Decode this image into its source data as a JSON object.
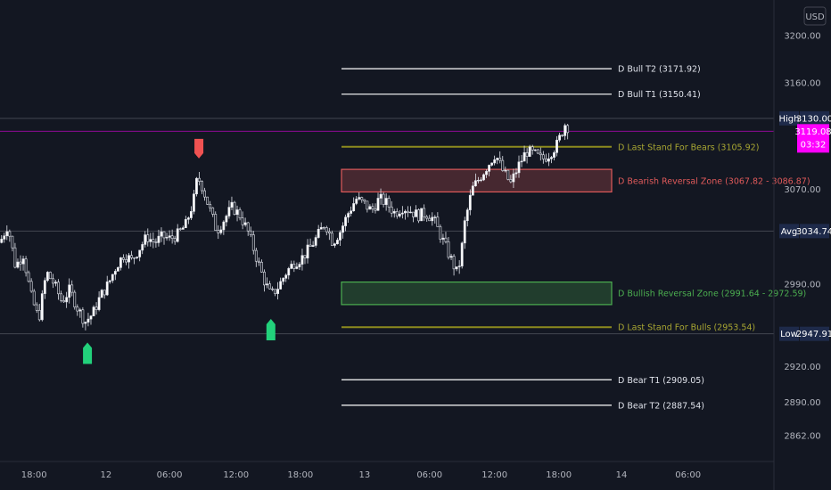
{
  "currency": "USD",
  "chart_data": {
    "type": "candlestick",
    "y_range": [
      2840,
      3230
    ],
    "y_ticks": [
      {
        "label": "3200.00",
        "value": 3200
      },
      {
        "label": "3160.00",
        "value": 3160
      },
      {
        "label": "3070.00",
        "value": 3070
      },
      {
        "label": "2990.00",
        "value": 2990
      },
      {
        "label": "2920.00",
        "value": 2920
      },
      {
        "label": "2890.00",
        "value": 2890
      },
      {
        "label": "2862.00",
        "value": 2862
      }
    ],
    "x_ticks": [
      {
        "label": "18:00",
        "pos": 0.044
      },
      {
        "label": "12",
        "pos": 0.137
      },
      {
        "label": "06:00",
        "pos": 0.219
      },
      {
        "label": "12:00",
        "pos": 0.305
      },
      {
        "label": "18:00",
        "pos": 0.388
      },
      {
        "label": "13",
        "pos": 0.471
      },
      {
        "label": "06:00",
        "pos": 0.555
      },
      {
        "label": "12:00",
        "pos": 0.639
      },
      {
        "label": "18:00",
        "pos": 0.722
      },
      {
        "label": "14",
        "pos": 0.803
      },
      {
        "label": "06:00",
        "pos": 0.889
      }
    ],
    "levels": [
      {
        "name": "D Bull T2",
        "label": "D Bull T2 (3171.92)",
        "value": 3171.92,
        "color": "#ffffff"
      },
      {
        "name": "D Bull T1",
        "label": "D Bull T1 (3150.41)",
        "value": 3150.41,
        "color": "#ffffff"
      },
      {
        "name": "D Last Stand For Bears",
        "label": "D Last Stand For Bears (3105.92)",
        "value": 3105.92,
        "color": "#8c8a1e"
      },
      {
        "name": "D Last Stand For Bulls",
        "label": "D Last Stand For Bulls (2953.54)",
        "value": 2953.54,
        "color": "#8c8a1e"
      },
      {
        "name": "D Bear T1",
        "label": "D Bear T1 (2909.05)",
        "value": 2909.05,
        "color": "#ffffff"
      },
      {
        "name": "D Bear T2",
        "label": "D Bear T2 (2887.54)",
        "value": 2887.54,
        "color": "#ffffff"
      }
    ],
    "zones": [
      {
        "name": "D Bearish Reversal Zone",
        "label": "D Bearish Reversal Zone (3067.82 - 3086.87)",
        "low": 3067.82,
        "high": 3086.87,
        "color": "#e05a5a"
      },
      {
        "name": "D Bullish Reversal Zone",
        "label": "D Bullish Reversal Zone (2991.64 - 2972.59)",
        "low": 2972.59,
        "high": 2991.64,
        "color": "#4caf50"
      }
    ],
    "reference_lines": [
      {
        "name": "High",
        "tag": "High",
        "value_label": "3130.00",
        "value": 3130.0
      },
      {
        "name": "Avg",
        "tag": "Avg",
        "value_label": "3034.74",
        "value": 3034.74
      },
      {
        "name": "Low",
        "tag": "Low",
        "value_label": "2947.91",
        "value": 2947.91
      }
    ],
    "current_price": {
      "value": 3119.08,
      "label": "3119.08",
      "countdown": "03:32",
      "color": "#ff00ff"
    },
    "signals": [
      {
        "type": "sell",
        "pos": 0.257,
        "color": "#f05252"
      },
      {
        "type": "buy",
        "pos": 0.113,
        "color": "#22d17b"
      },
      {
        "type": "buy",
        "pos": 0.35,
        "color": "#22d17b"
      }
    ],
    "price_path": [
      [
        0.0,
        3025
      ],
      [
        0.01,
        3040
      ],
      [
        0.02,
        3005
      ],
      [
        0.03,
        3015
      ],
      [
        0.04,
        2980
      ],
      [
        0.05,
        2960
      ],
      [
        0.06,
        3000
      ],
      [
        0.07,
        2990
      ],
      [
        0.08,
        2975
      ],
      [
        0.09,
        2985
      ],
      [
        0.1,
        2970
      ],
      [
        0.11,
        2958
      ],
      [
        0.12,
        2965
      ],
      [
        0.13,
        2980
      ],
      [
        0.14,
        2990
      ],
      [
        0.15,
        3005
      ],
      [
        0.16,
        3015
      ],
      [
        0.17,
        3010
      ],
      [
        0.18,
        3020
      ],
      [
        0.19,
        3030
      ],
      [
        0.2,
        3025
      ],
      [
        0.21,
        3030
      ],
      [
        0.22,
        3028
      ],
      [
        0.23,
        3032
      ],
      [
        0.24,
        3040
      ],
      [
        0.25,
        3060
      ],
      [
        0.255,
        3080
      ],
      [
        0.26,
        3075
      ],
      [
        0.27,
        3055
      ],
      [
        0.28,
        3035
      ],
      [
        0.29,
        3045
      ],
      [
        0.3,
        3055
      ],
      [
        0.31,
        3048
      ],
      [
        0.32,
        3035
      ],
      [
        0.33,
        3015
      ],
      [
        0.34,
        2995
      ],
      [
        0.35,
        2980
      ],
      [
        0.36,
        2988
      ],
      [
        0.37,
        3000
      ],
      [
        0.38,
        3008
      ],
      [
        0.39,
        3012
      ],
      [
        0.4,
        3020
      ],
      [
        0.41,
        3030
      ],
      [
        0.42,
        3042
      ],
      [
        0.43,
        3025
      ],
      [
        0.44,
        3035
      ],
      [
        0.45,
        3050
      ],
      [
        0.46,
        3062
      ],
      [
        0.47,
        3058
      ],
      [
        0.48,
        3052
      ],
      [
        0.49,
        3062
      ],
      [
        0.5,
        3058
      ],
      [
        0.51,
        3050
      ],
      [
        0.52,
        3055
      ],
      [
        0.53,
        3052
      ],
      [
        0.54,
        3048
      ],
      [
        0.55,
        3050
      ],
      [
        0.56,
        3045
      ],
      [
        0.57,
        3030
      ],
      [
        0.58,
        3015
      ],
      [
        0.59,
        3000
      ],
      [
        0.595,
        3010
      ],
      [
        0.6,
        3040
      ],
      [
        0.61,
        3070
      ],
      [
        0.62,
        3080
      ],
      [
        0.63,
        3090
      ],
      [
        0.64,
        3100
      ],
      [
        0.65,
        3085
      ],
      [
        0.66,
        3075
      ],
      [
        0.67,
        3090
      ],
      [
        0.68,
        3102
      ],
      [
        0.69,
        3100
      ],
      [
        0.7,
        3095
      ],
      [
        0.71,
        3100
      ],
      [
        0.72,
        3108
      ],
      [
        0.73,
        3125
      ],
      [
        0.735,
        3122
      ]
    ]
  }
}
